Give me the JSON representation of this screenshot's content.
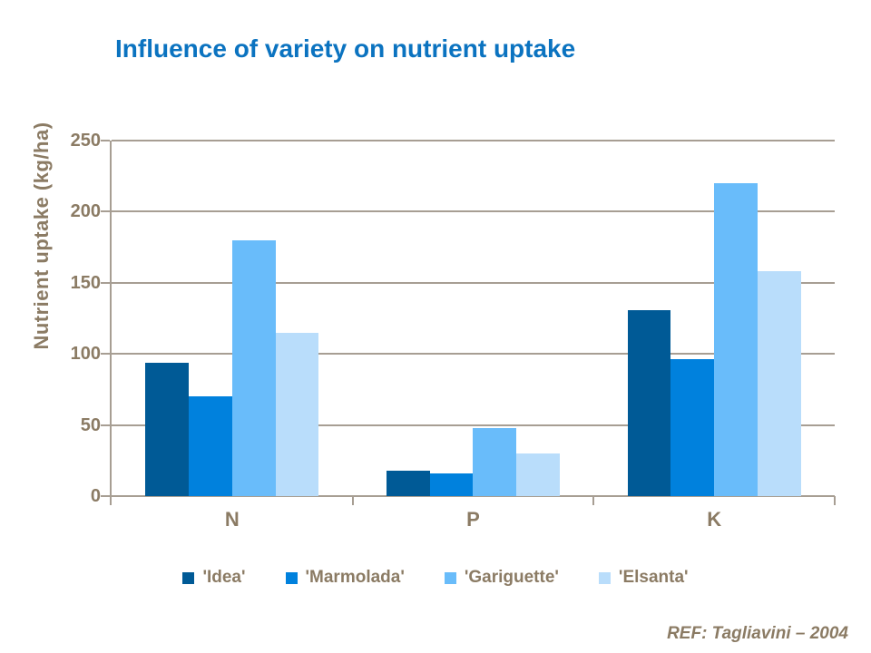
{
  "title": "Influence of variety on nutrient uptake",
  "footer": "REF: Tagliavini – 2004",
  "colors": {
    "title": "#0b73c0",
    "axis_text": "#8b7b64",
    "gridline": "#a79e93"
  },
  "chart_data": {
    "type": "bar",
    "title": "Influence of variety on nutrient uptake",
    "categories": [
      "N",
      "P",
      "K"
    ],
    "series": [
      {
        "name": "'Idea'",
        "color": "#005a96",
        "values": [
          94,
          18,
          131
        ]
      },
      {
        "name": "'Marmolada'",
        "color": "#0081dd",
        "values": [
          70,
          16,
          96
        ]
      },
      {
        "name": "'Gariguette'",
        "color": "#69bcfa",
        "values": [
          180,
          48,
          220
        ]
      },
      {
        "name": "'Elsanta'",
        "color": "#b9ddfb",
        "values": [
          115,
          30,
          158
        ]
      }
    ],
    "xlabel": "",
    "ylabel": "Nutrient uptake (kg/ha)",
    "ylim": [
      0,
      250
    ],
    "yticks": [
      0,
      50,
      100,
      150,
      200,
      250
    ],
    "grid": true,
    "legend_position": "bottom"
  }
}
